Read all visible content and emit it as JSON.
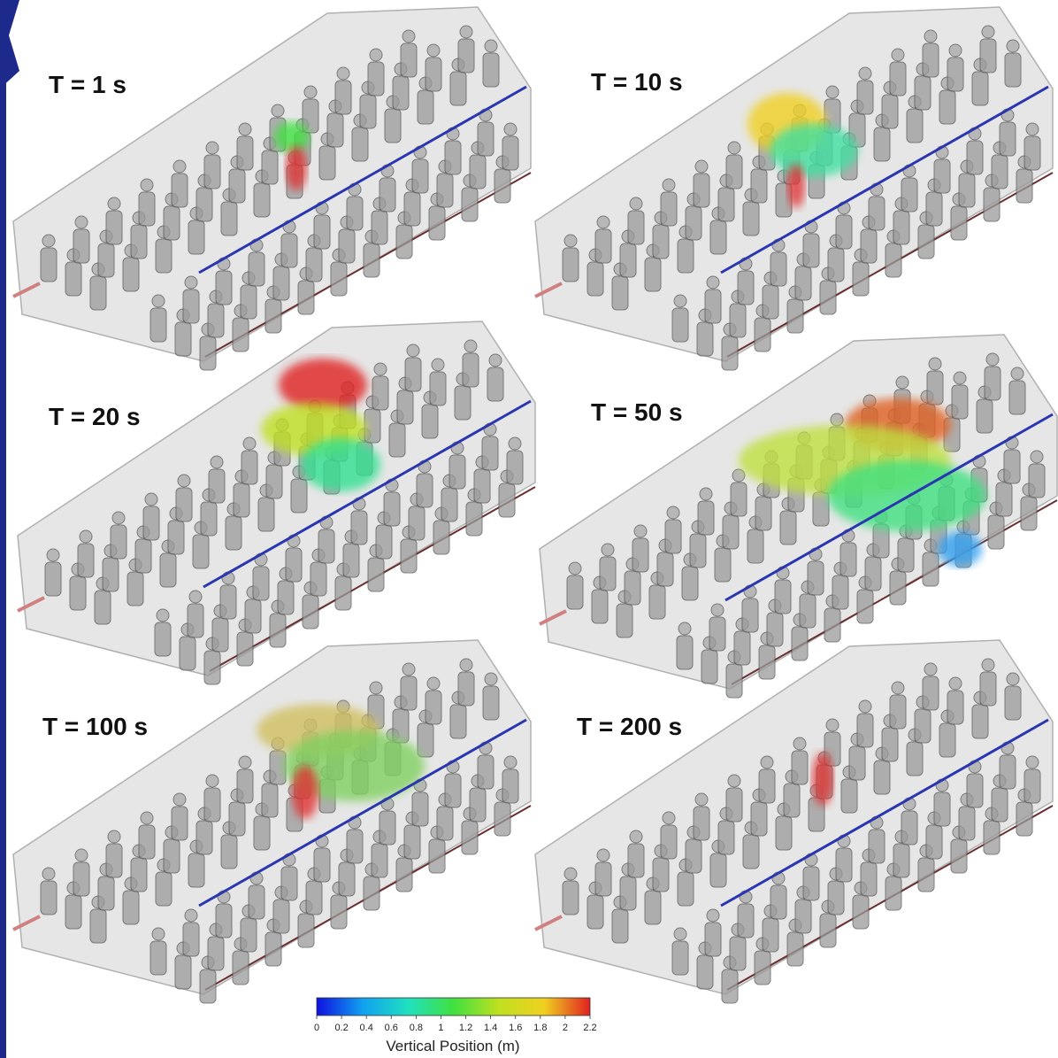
{
  "panels": [
    {
      "label": "T = 1 s"
    },
    {
      "label": "T = 10 s"
    },
    {
      "label": "T = 20 s"
    },
    {
      "label": "T = 50 s"
    },
    {
      "label": "T = 100 s"
    },
    {
      "label": "T = 200 s"
    }
  ],
  "colorbar": {
    "title": "Vertical Position (m)",
    "range": [
      0,
      2.2
    ],
    "ticks": [
      0,
      0.2,
      0.4,
      0.6,
      0.8,
      1,
      1.2,
      1.4,
      1.6,
      1.8,
      2,
      2.2
    ],
    "colors": [
      "#1010e0",
      "#10a0f0",
      "#20e0c0",
      "#40e040",
      "#c0e020",
      "#f0d020",
      "#e02020"
    ]
  }
}
